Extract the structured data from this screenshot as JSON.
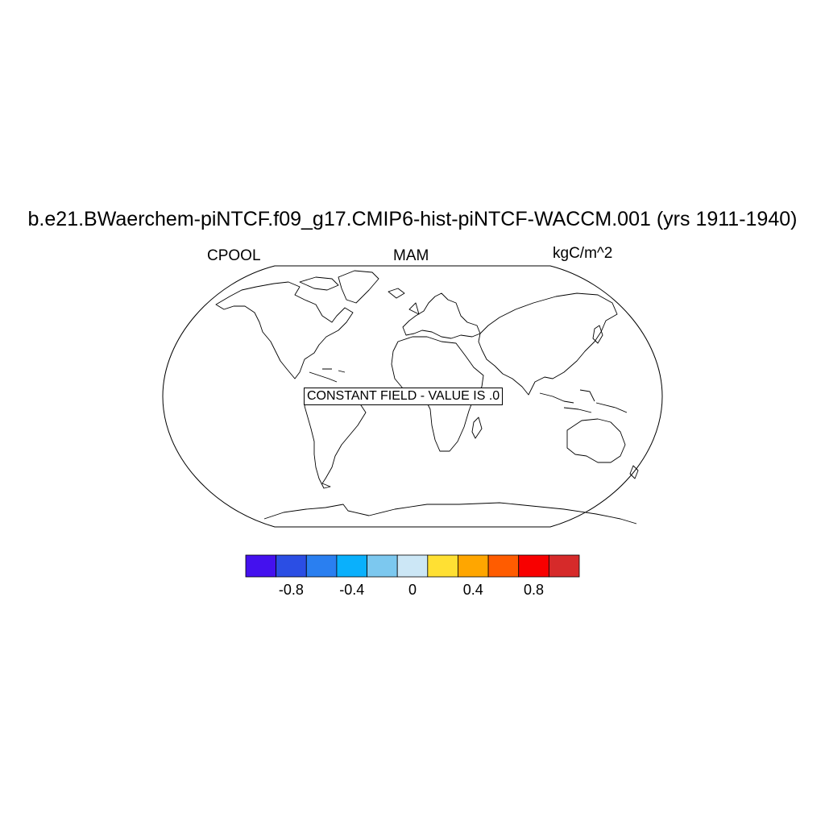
{
  "header": {
    "title": "b.e21.BWaerchem-piNTCF.f09_g17.CMIP6-hist-piNTCF-WACCM.001 (yrs 1911-1940)",
    "left": "CPOOL",
    "center": "MAM",
    "right": "kgC/m^2"
  },
  "map": {
    "projection": "robinson",
    "message": "CONSTANT FIELD - VALUE IS .0"
  },
  "colorbar": {
    "colors": [
      "#4411ee",
      "#2b4ee4",
      "#2a7ff0",
      "#0ab0fc",
      "#7cc8ef",
      "#cce7f6",
      "#ffe033",
      "#ffa600",
      "#ff5c00",
      "#f80000",
      "#d62a2a"
    ],
    "ticks": [
      {
        "value": -0.8,
        "label": "-0.8"
      },
      {
        "value": -0.4,
        "label": "-0.4"
      },
      {
        "value": 0,
        "label": "0"
      },
      {
        "value": 0.4,
        "label": "0.4"
      },
      {
        "value": 0.8,
        "label": "0.8"
      }
    ],
    "range": [
      -1.1,
      1.1
    ]
  }
}
